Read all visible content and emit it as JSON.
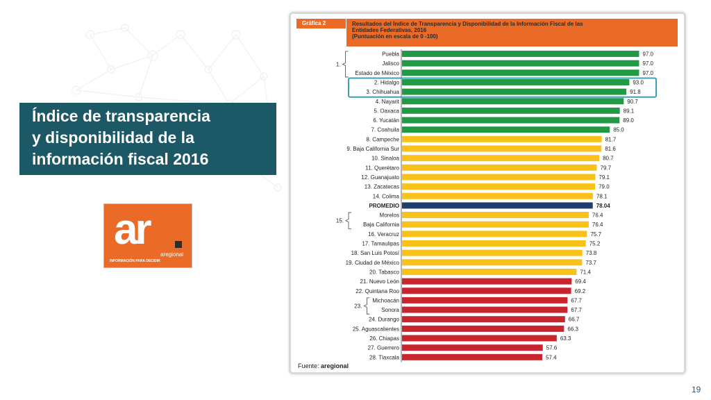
{
  "slide": {
    "title_lines": [
      "Índice de transparencia",
      "y disponibilidad de la",
      "información fiscal 2016"
    ],
    "page_number": "19"
  },
  "logo": {
    "mark": "ar",
    "name": "aregional",
    "tagline": "INFORMACIÓN PARA DECIDIR"
  },
  "chart_header": {
    "label": "Gráfica 2",
    "title_lines": [
      "Resultados del Índice de Transparencia y  Disponibilidad de la Información Fiscal de las",
      "Entidades Federativas, 2016",
      "(Puntuación en escala de 0 -100)"
    ],
    "source_prefix": "Fuente:",
    "source_name": "aregional"
  },
  "colors": {
    "green": "#229a45",
    "yellow": "#f9c21b",
    "blue": "#1f3e6e",
    "red": "#c7262e",
    "title_box": "#1d5866",
    "accent_orange": "#ea6b27",
    "highlight_box": "#3aa0b8"
  },
  "chart_data": {
    "type": "bar",
    "orientation": "horizontal",
    "xlim": [
      0,
      100
    ],
    "categories": [
      "Puebla",
      "Jalisco",
      "Estado de México",
      "2. Hidalgo",
      "3. Chihuahua",
      "4. Nayarit",
      "5. Oaxaca",
      "6. Yucatán",
      "7. Coahuila",
      "8. Campeche",
      "9. Baja California Sur",
      "10. Sinaloa",
      "11. Querétaro",
      "12. Guanajuato",
      "13. Zacatecas",
      "14. Colima",
      "PROMEDIO",
      "Morelos",
      "Baja California",
      "16. Veracruz",
      "17. Tamaulipas",
      "18. San Luis Potosí",
      "19. Ciudad de México",
      "20. Tabasco",
      "21. Nuevo León",
      "22. Quintana Roo",
      "Michoacán",
      "Sonora",
      "24. Durango",
      "25. Aguascalientes",
      "26. Chiapas",
      "27. Guerrero",
      "28. Tlaxcala"
    ],
    "values": [
      97.0,
      97.0,
      97.0,
      93.0,
      91.8,
      90.7,
      89.1,
      89.0,
      85.0,
      81.7,
      81.6,
      80.7,
      79.7,
      79.1,
      79.0,
      78.1,
      78.04,
      76.4,
      76.4,
      75.7,
      75.2,
      73.8,
      73.7,
      71.4,
      69.4,
      69.2,
      67.7,
      67.7,
      66.7,
      66.3,
      63.3,
      57.6,
      57.4
    ],
    "value_labels": [
      "97.0",
      "97.0",
      "97.0",
      "93.0",
      "91.8",
      "90.7",
      "89.1",
      "89.0",
      "85.0",
      "81.7",
      "81.6",
      "80.7",
      "79.7",
      "79.1",
      "79.0",
      "78.1",
      "78.04",
      "76.4",
      "76.4",
      "75.7",
      "75.2",
      "73.8",
      "73.7",
      "71.4",
      "69.4",
      "69.2",
      "67.7",
      "67.7",
      "66.7",
      "66.3",
      "63.3",
      "57.6",
      "57.4"
    ],
    "color_groups": [
      "green",
      "green",
      "green",
      "green",
      "green",
      "green",
      "green",
      "green",
      "green",
      "yellow",
      "yellow",
      "yellow",
      "yellow",
      "yellow",
      "yellow",
      "yellow",
      "blue",
      "yellow",
      "yellow",
      "yellow",
      "yellow",
      "yellow",
      "yellow",
      "yellow",
      "red",
      "red",
      "red",
      "red",
      "red",
      "red",
      "red",
      "red",
      "red"
    ],
    "rank_groups": [
      {
        "label": "1.",
        "first": 0,
        "last": 2
      },
      {
        "label": "15.",
        "first": 17,
        "last": 18
      },
      {
        "label": "23.",
        "first": 26,
        "last": 27
      }
    ],
    "highlight": {
      "first": 3,
      "last": 4
    }
  }
}
